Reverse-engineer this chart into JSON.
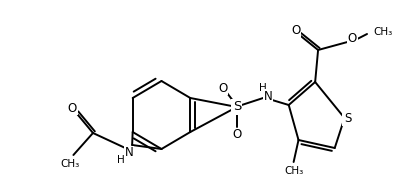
{
  "bg_color": "#ffffff",
  "bond_color": "#000000",
  "lw": 1.4,
  "fs": 8.5,
  "figsize": [
    3.95,
    1.89
  ],
  "dpi": 100,
  "xlim": [
    0,
    395
  ],
  "ylim": [
    0,
    189
  ]
}
